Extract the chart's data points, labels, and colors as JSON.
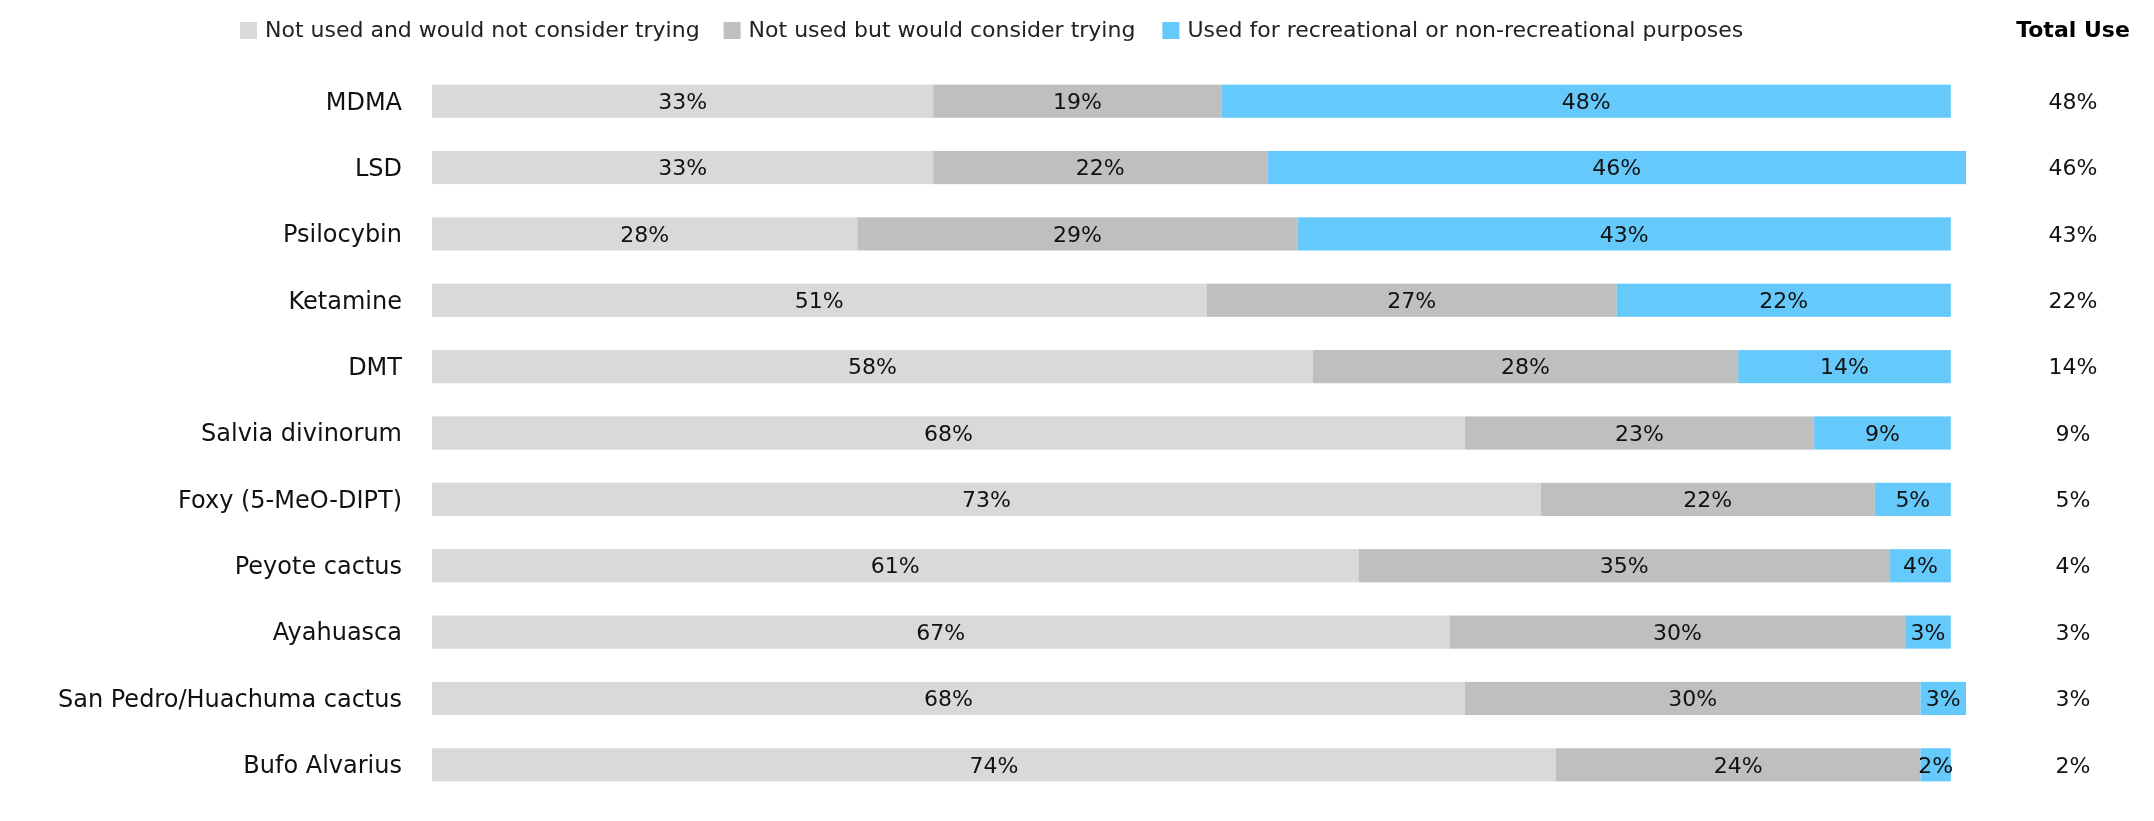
{
  "chart_data": {
    "type": "bar",
    "orientation": "horizontal",
    "stacked": true,
    "legend": "top",
    "tick_labels": "y",
    "categories": [
      "MDMA",
      "LSD",
      "Psilocybin",
      "Ketamine",
      "DMT",
      "Salvia divinorum",
      "Foxy (5-MeO-DIPT)",
      "Peyote cactus",
      "Ayahuasca",
      "San Pedro/Huachuma cactus",
      "Bufo Alvarius"
    ],
    "series": [
      {
        "name": "Not used and would not consider trying",
        "color": "#d9d9d9",
        "values": [
          33,
          33,
          28,
          51,
          58,
          68,
          73,
          61,
          67,
          68,
          74
        ],
        "value_labels": [
          "33%",
          "33%",
          "28%",
          "51%",
          "58%",
          "68%",
          "73%",
          "61%",
          "67%",
          "68%",
          "74%"
        ]
      },
      {
        "name": "Not used but would consider trying",
        "color": "#bfbfbf",
        "values": [
          19,
          22,
          29,
          27,
          28,
          23,
          22,
          35,
          30,
          30,
          24
        ],
        "value_labels": [
          "19%",
          "22%",
          "29%",
          "27%",
          "28%",
          "23%",
          "22%",
          "35%",
          "30%",
          "30%",
          "24%"
        ]
      },
      {
        "name": "Used for recreational or non-recreational purposes",
        "color": "#66c9fb",
        "values": [
          48,
          46,
          43,
          22,
          14,
          9,
          5,
          4,
          3,
          3,
          2
        ],
        "value_labels": [
          "48%",
          "46%",
          "43%",
          "22%",
          "14%",
          "9%",
          "5%",
          "4%",
          "3%",
          "3%",
          "2%"
        ]
      }
    ],
    "annotations": [
      "Total Use",
      "48%",
      "46%",
      "43%",
      "22%",
      "14%",
      "9%",
      "5%",
      "4%",
      "3%",
      "3%",
      "2%"
    ]
  }
}
